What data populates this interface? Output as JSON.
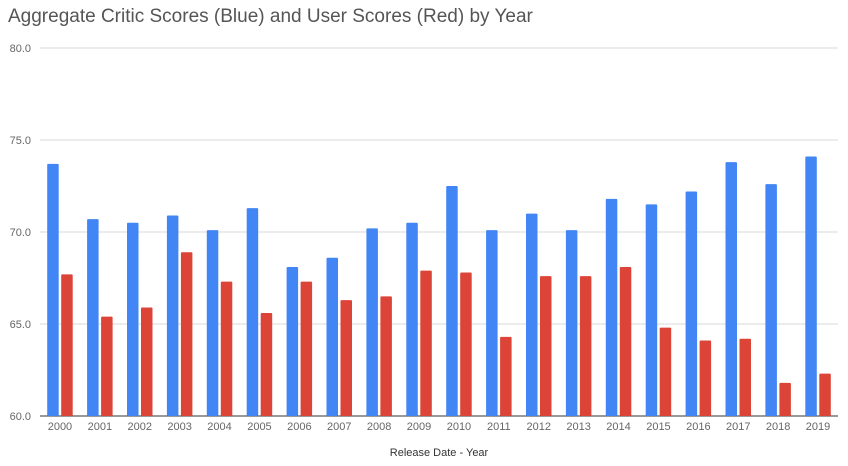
{
  "chart_data": {
    "type": "bar",
    "title": "Aggregate Critic Scores (Blue) and User Scores (Red) by Year",
    "xlabel": "Release Date - Year",
    "ylabel": "",
    "ylim": [
      60,
      80
    ],
    "yticks": [
      "60.0",
      "65.0",
      "70.0",
      "75.0",
      "80.0"
    ],
    "grid": true,
    "legend": "none",
    "categories": [
      "2000",
      "2001",
      "2002",
      "2003",
      "2004",
      "2005",
      "2006",
      "2007",
      "2008",
      "2009",
      "2010",
      "2011",
      "2012",
      "2013",
      "2014",
      "2015",
      "2016",
      "2017",
      "2018",
      "2019"
    ],
    "series": [
      {
        "color": "#4285F4",
        "values": [
          73.7,
          70.7,
          70.5,
          70.9,
          70.1,
          71.3,
          68.1,
          68.6,
          70.2,
          70.5,
          72.5,
          70.1,
          71.0,
          70.1,
          71.8,
          71.5,
          72.2,
          73.8,
          72.6,
          74.1
        ]
      },
      {
        "color": "#DB4437",
        "values": [
          67.7,
          65.4,
          65.9,
          68.9,
          67.3,
          65.6,
          67.3,
          66.3,
          66.5,
          67.9,
          67.8,
          64.3,
          67.6,
          67.6,
          68.1,
          64.8,
          64.1,
          64.2,
          61.8,
          62.3
        ]
      }
    ]
  }
}
